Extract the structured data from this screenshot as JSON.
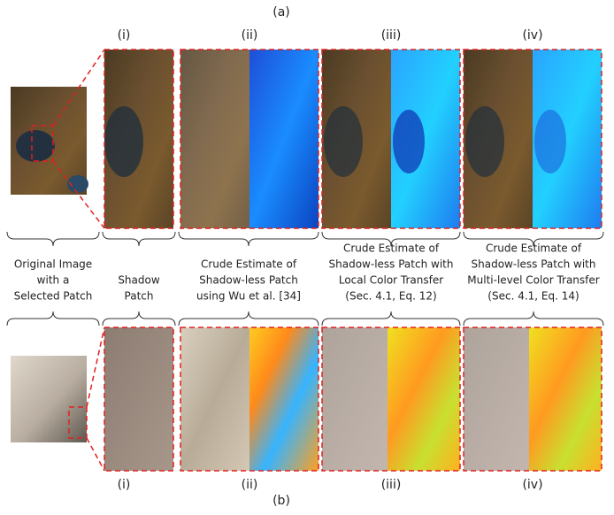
{
  "top_label": "(a)",
  "top_columns": [
    "(i)",
    "(ii)",
    "(iii)",
    "(iv)"
  ],
  "captions": [
    [
      "Original Image",
      "with a",
      "Selected Patch"
    ],
    [
      "Shadow",
      "Patch"
    ],
    [
      "Crude Estimate of",
      "Shadow-less Patch",
      "using Wu et al. [34]"
    ],
    [
      "Crude Estimate of",
      "Shadow-less Patch with",
      "Local Color Transfer",
      "(Sec. 4.1, Eq. 12)"
    ],
    [
      "Crude Estimate of",
      "Shadow-less Patch with",
      "Multi-level Color Transfer",
      "(Sec. 4.1, Eq. 14)"
    ]
  ],
  "bottom_columns": [
    "(i)",
    "(ii)",
    "(iii)",
    "(iv)"
  ],
  "bottom_label": "(b)"
}
